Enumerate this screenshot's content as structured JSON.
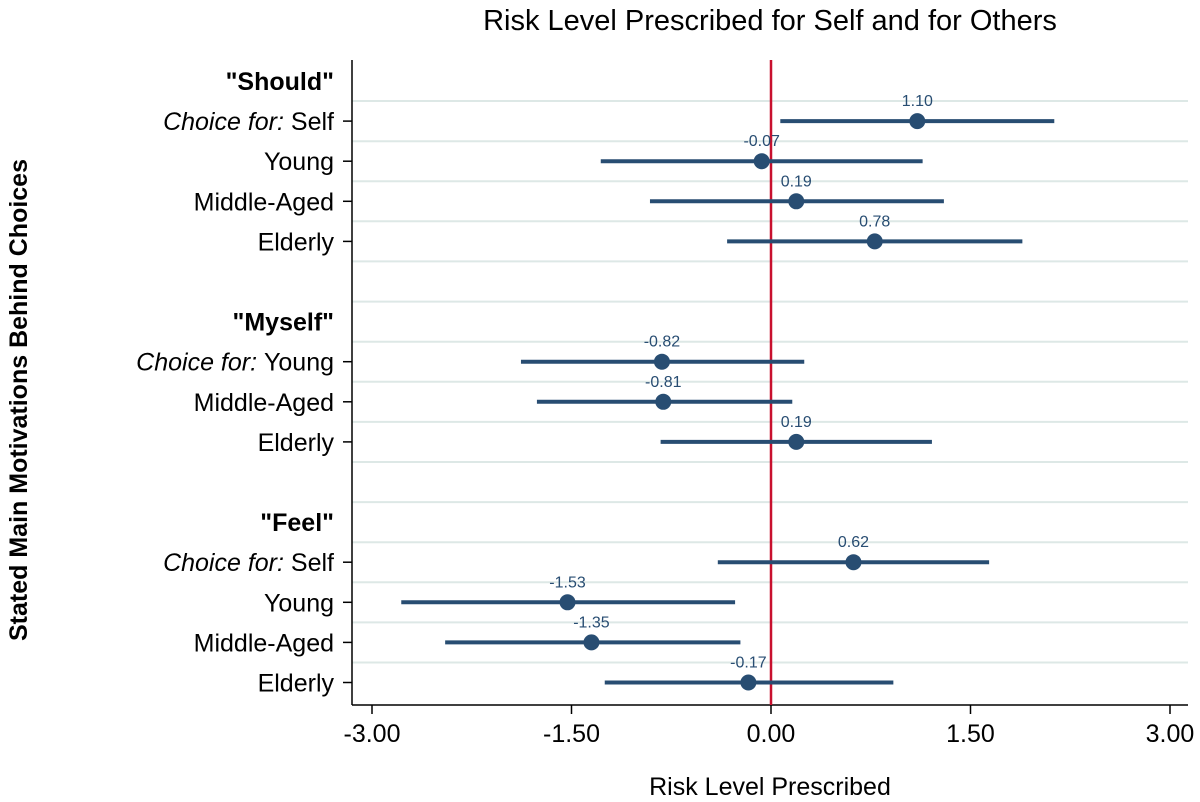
{
  "chart_data": {
    "type": "coefficient-plot",
    "title": "Risk Level Prescribed for Self and for Others",
    "xlabel": "Risk Level Prescribed",
    "ylabel": "Stated Main Motivations Behind Choices",
    "xlim": [
      -3.0,
      3.0
    ],
    "xticks": [
      "-3.00",
      "-1.50",
      "0.00",
      "1.50",
      "3.00"
    ],
    "xtick_values": [
      -3.0,
      -1.5,
      0.0,
      1.5,
      3.0
    ],
    "reference_line": 0,
    "grid": true,
    "colors": {
      "series": "#284d72",
      "reference": "#c8102e",
      "grid": "#dde8e6",
      "axis": "#000000"
    },
    "groups": [
      {
        "label": "\"Should\"",
        "prefix": "Choice for:",
        "items": [
          {
            "label": "Self",
            "estimate": 1.1,
            "ci": [
              0.07,
              2.13
            ],
            "value_label": "1.10"
          },
          {
            "label": "Young",
            "estimate": -0.07,
            "ci": [
              -1.28,
              1.14
            ],
            "value_label": "-0.07"
          },
          {
            "label": "Middle-Aged",
            "estimate": 0.19,
            "ci": [
              -0.91,
              1.3
            ],
            "value_label": "0.19"
          },
          {
            "label": "Elderly",
            "estimate": 0.78,
            "ci": [
              -0.33,
              1.89
            ],
            "value_label": "0.78"
          }
        ]
      },
      {
        "label": "\"Myself\"",
        "prefix": "Choice for:",
        "items": [
          {
            "label": "Young",
            "estimate": -0.82,
            "ci": [
              -1.88,
              0.25
            ],
            "value_label": "-0.82"
          },
          {
            "label": "Middle-Aged",
            "estimate": -0.81,
            "ci": [
              -1.76,
              0.16
            ],
            "value_label": "-0.81"
          },
          {
            "label": "Elderly",
            "estimate": 0.19,
            "ci": [
              -0.83,
              1.21
            ],
            "value_label": "0.19"
          }
        ]
      },
      {
        "label": "\"Feel\"",
        "prefix": "Choice for:",
        "items": [
          {
            "label": "Self",
            "estimate": 0.62,
            "ci": [
              -0.4,
              1.64
            ],
            "value_label": "0.62"
          },
          {
            "label": "Young",
            "estimate": -1.53,
            "ci": [
              -2.78,
              -0.27
            ],
            "value_label": "-1.53"
          },
          {
            "label": "Middle-Aged",
            "estimate": -1.35,
            "ci": [
              -2.45,
              -0.23
            ],
            "value_label": "-1.35"
          },
          {
            "label": "Elderly",
            "estimate": -0.17,
            "ci": [
              -1.25,
              0.92
            ],
            "value_label": "-0.17"
          }
        ]
      }
    ]
  }
}
